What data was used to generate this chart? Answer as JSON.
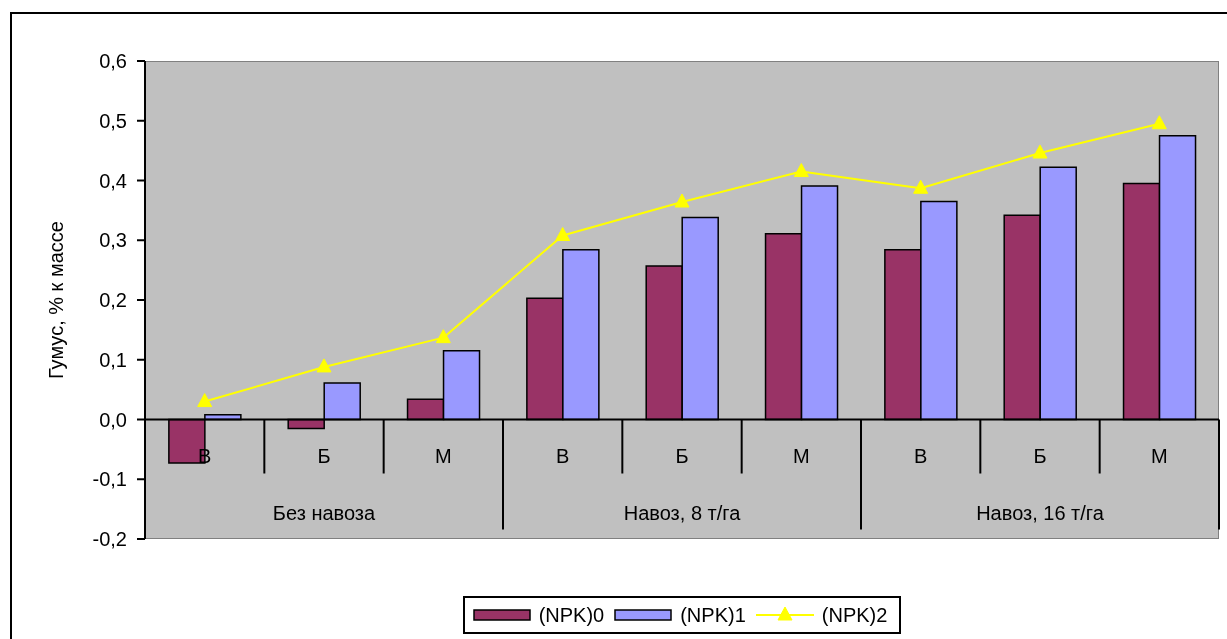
{
  "chart_data": {
    "type": "bar",
    "ylabel": "Гумус, % к массе",
    "categories": [
      "В",
      "Б",
      "М",
      "В",
      "Б",
      "М",
      "В",
      "Б",
      "М"
    ],
    "annotations": [
      "Без навоза",
      "Навоз, 8 т/га",
      "Навоз, 16 т/га"
    ],
    "series": [
      {
        "name": "(NPK)0",
        "color": "#993366",
        "values": [
          -0.073,
          -0.015,
          0.034,
          0.203,
          0.257,
          0.311,
          0.284,
          0.342,
          0.395
        ]
      },
      {
        "name": "(NPK)1",
        "color": "#9999ff",
        "values": [
          0.008,
          0.061,
          0.115,
          0.284,
          0.338,
          0.391,
          0.365,
          0.422,
          0.475
        ]
      },
      {
        "name": "(NPK)2",
        "type": "line",
        "color": "#ffff00",
        "values": [
          0.03,
          0.088,
          0.137,
          0.308,
          0.364,
          0.415,
          0.387,
          0.446,
          0.495
        ]
      }
    ],
    "ylim": [
      -0.2,
      0.6
    ],
    "yticks": [
      {
        "value": -0.2,
        "label": "-0,2"
      },
      {
        "value": -0.1,
        "label": "-0,1"
      },
      {
        "value": 0,
        "label": "0,0"
      },
      {
        "value": 0.1,
        "label": "0,1"
      },
      {
        "value": 0.2,
        "label": "0,2"
      },
      {
        "value": 0.3,
        "label": "0,3"
      },
      {
        "value": 0.4,
        "label": "0,4"
      },
      {
        "value": 0.5,
        "label": "0,5"
      },
      {
        "value": 0.6,
        "label": "0,6"
      }
    ],
    "legend": "bottom",
    "marker": "triangle",
    "line_style": "solid"
  }
}
